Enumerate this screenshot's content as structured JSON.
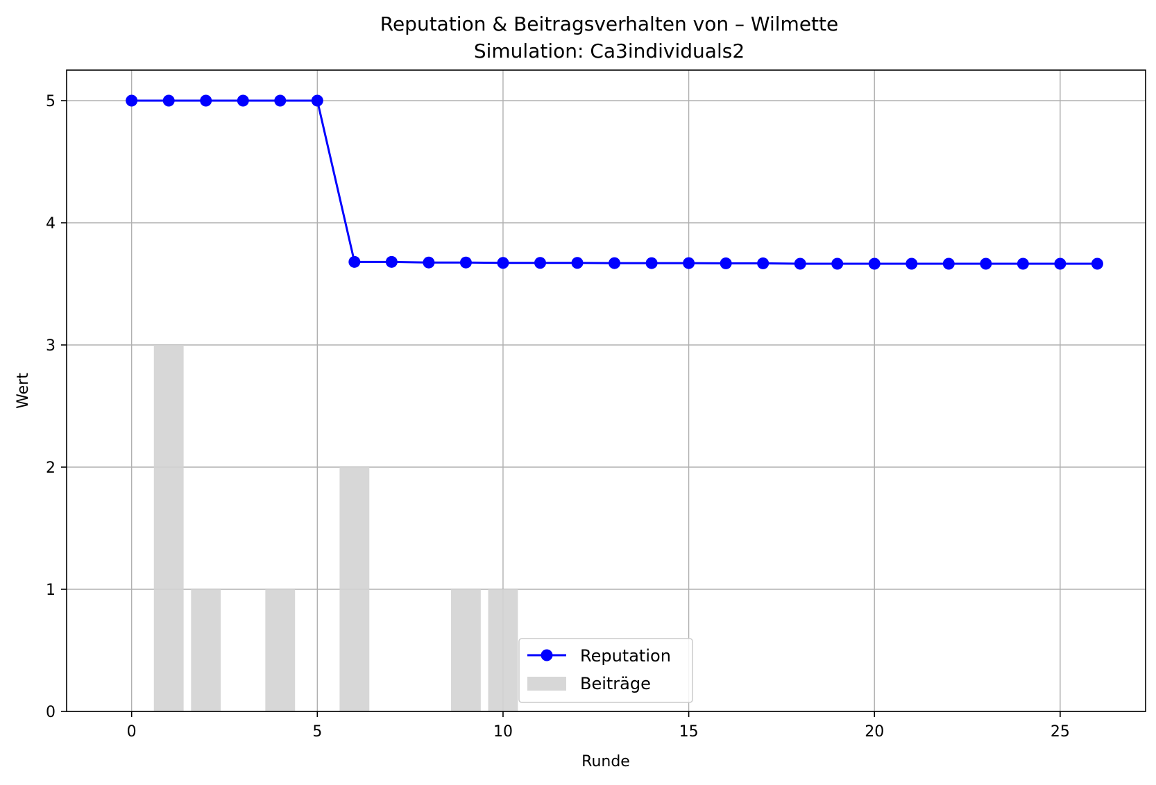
{
  "chart_data": {
    "type": "bar+line",
    "title": "Reputation & Beitragsverhalten von – Wilmette",
    "subtitle": "Simulation: Ca3individuals2",
    "xlabel": "Runde",
    "ylabel": "Wert",
    "xlim": [
      -1.75,
      27.3
    ],
    "ylim": [
      0,
      5.25
    ],
    "xticks": [
      0,
      5,
      10,
      15,
      20,
      25
    ],
    "yticks": [
      0,
      1,
      2,
      3,
      4,
      5
    ],
    "grid": true,
    "legend_position": "lower center",
    "series": [
      {
        "name": "Reputation",
        "type": "line",
        "marker": "circle",
        "color": "#0000ff",
        "x": [
          0,
          1,
          2,
          3,
          4,
          5,
          6,
          7,
          8,
          9,
          10,
          11,
          12,
          13,
          14,
          15,
          16,
          17,
          18,
          19,
          20,
          21,
          22,
          23,
          24,
          25,
          26
        ],
        "values": [
          5,
          5,
          5,
          5,
          5,
          5,
          3.68,
          3.68,
          3.675,
          3.675,
          3.672,
          3.672,
          3.672,
          3.67,
          3.67,
          3.67,
          3.668,
          3.668,
          3.665,
          3.665,
          3.665,
          3.665,
          3.665,
          3.665,
          3.665,
          3.665,
          3.665
        ]
      },
      {
        "name": "Beiträge",
        "type": "bar",
        "color": "#d3d3d3",
        "x": [
          0,
          1,
          2,
          3,
          4,
          5,
          6,
          7,
          8,
          9,
          10,
          11,
          12,
          13,
          14,
          15,
          16,
          17,
          18,
          19,
          20,
          21,
          22,
          23,
          24,
          25,
          26
        ],
        "values": [
          0,
          3,
          1,
          0,
          1,
          0,
          2,
          0,
          0,
          1,
          1,
          0,
          0,
          0,
          0,
          0,
          0,
          0,
          0,
          0,
          0,
          0,
          0,
          0,
          0,
          0,
          0
        ]
      }
    ]
  }
}
